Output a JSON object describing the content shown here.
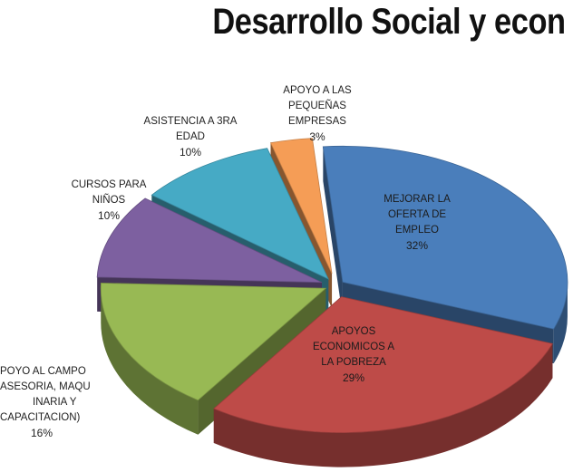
{
  "title": "Desarrollo Social y econ",
  "chart_data": {
    "type": "pie",
    "title": "Desarrollo Social y econ",
    "slices": [
      {
        "label": "MEJORAR LA OFERTA DE EMPLEO",
        "value": 32,
        "pct_label": "32%",
        "color": "#4a7ebb"
      },
      {
        "label": "APOYOS ECONOMICOS A LA POBREZA",
        "value": 29,
        "pct_label": "29%",
        "color": "#be4b48"
      },
      {
        "label": "APOYO AL CAMPO (ASESORIA, MAQUINARIA Y CAPACITACION)",
        "value": 16,
        "pct_label": "16%",
        "color": "#98b954"
      },
      {
        "label": "CURSOS PARA NIÑOS",
        "value": 10,
        "pct_label": "10%",
        "color": "#7d60a0"
      },
      {
        "label": "ASISTENCIA A 3RA EDAD",
        "value": 10,
        "pct_label": "10%",
        "color": "#46aac5"
      },
      {
        "label": "APOYO A LAS PEQUEÑAS EMPRESAS",
        "value": 3,
        "pct_label": "3%",
        "color": "#f59d56"
      }
    ],
    "exploded": true,
    "three_d": true
  },
  "labels": {
    "empleo_1": "MEJORAR LA",
    "empleo_2": "OFERTA DE",
    "empleo_3": "EMPLEO",
    "pobreza_1": "APOYOS",
    "pobreza_2": "ECONOMICOS A",
    "pobreza_3": "LA POBREZA",
    "campo_1": "POYO AL CAMPO",
    "campo_2": "ASESORIA, MAQU",
    "campo_3": "INARIA Y",
    "campo_4": "CAPACITACION)",
    "ninos_1": "CURSOS PARA",
    "ninos_2": "NIÑOS",
    "edad_1": "ASISTENCIA A 3RA",
    "edad_2": "EDAD",
    "empresas_1": "APOYO A LAS",
    "empresas_2": "PEQUEÑAS",
    "empresas_3": "EMPRESAS"
  }
}
